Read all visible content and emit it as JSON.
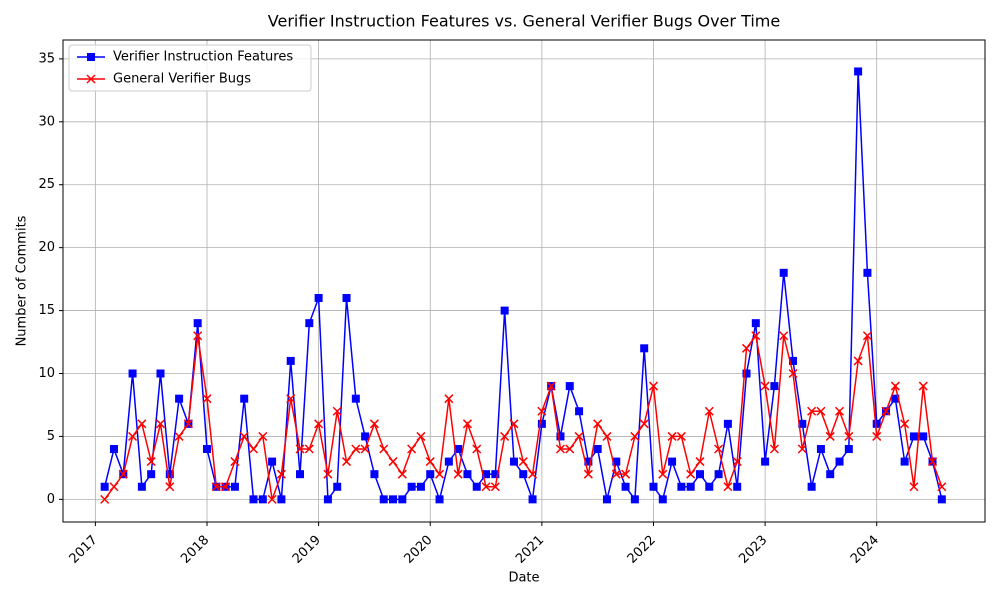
{
  "chart_data": {
    "type": "line",
    "title": "Verifier Instruction Features vs. General Verifier Bugs Over Time",
    "xlabel": "Date",
    "ylabel": "Number of Commits",
    "x": [
      "2017-02",
      "2017-03",
      "2017-04",
      "2017-05",
      "2017-06",
      "2017-07",
      "2017-08",
      "2017-09",
      "2017-10",
      "2017-11",
      "2017-12",
      "2018-01",
      "2018-02",
      "2018-03",
      "2018-04",
      "2018-05",
      "2018-06",
      "2018-07",
      "2018-08",
      "2018-09",
      "2018-10",
      "2018-11",
      "2018-12",
      "2019-01",
      "2019-02",
      "2019-03",
      "2019-04",
      "2019-05",
      "2019-06",
      "2019-07",
      "2019-08",
      "2019-09",
      "2019-10",
      "2019-11",
      "2019-12",
      "2020-01",
      "2020-02",
      "2020-03",
      "2020-04",
      "2020-05",
      "2020-06",
      "2020-07",
      "2020-08",
      "2020-09",
      "2020-10",
      "2020-11",
      "2020-12",
      "2021-01",
      "2021-02",
      "2021-03",
      "2021-04",
      "2021-05",
      "2021-06",
      "2021-07",
      "2021-08",
      "2021-09",
      "2021-10",
      "2021-11",
      "2021-12",
      "2022-01",
      "2022-02",
      "2022-03",
      "2022-04",
      "2022-05",
      "2022-06",
      "2022-07",
      "2022-08",
      "2022-09",
      "2022-10",
      "2022-11",
      "2022-12",
      "2023-01",
      "2023-02",
      "2023-03",
      "2023-04",
      "2023-05",
      "2023-06",
      "2023-07",
      "2023-08",
      "2023-09",
      "2023-10",
      "2023-11",
      "2023-12",
      "2024-01",
      "2024-02",
      "2024-03",
      "2024-04",
      "2024-05",
      "2024-06",
      "2024-07",
      "2024-08"
    ],
    "series": [
      {
        "name": "Verifier Instruction Features",
        "color": "#0000ff",
        "marker": "square",
        "values": [
          1,
          4,
          2,
          10,
          1,
          2,
          10,
          2,
          8,
          6,
          14,
          4,
          1,
          1,
          1,
          8,
          0,
          0,
          3,
          0,
          11,
          2,
          14,
          16,
          0,
          1,
          16,
          8,
          5,
          2,
          0,
          0,
          0,
          1,
          1,
          2,
          0,
          3,
          4,
          2,
          1,
          2,
          2,
          15,
          3,
          2,
          0,
          6,
          9,
          5,
          9,
          7,
          3,
          4,
          0,
          3,
          1,
          0,
          12,
          1,
          0,
          3,
          1,
          1,
          2,
          1,
          2,
          6,
          1,
          10,
          14,
          3,
          9,
          18,
          11,
          6,
          1,
          4,
          2,
          3,
          4,
          34,
          18,
          6,
          7,
          8,
          3,
          5,
          5,
          3,
          0
        ]
      },
      {
        "name": "General Verifier Bugs",
        "color": "#ff0000",
        "marker": "x",
        "values": [
          0,
          1,
          2,
          5,
          6,
          3,
          6,
          1,
          5,
          6,
          13,
          8,
          1,
          1,
          3,
          5,
          4,
          5,
          0,
          2,
          8,
          4,
          4,
          6,
          2,
          7,
          3,
          4,
          4,
          6,
          4,
          3,
          2,
          4,
          5,
          3,
          2,
          8,
          2,
          6,
          4,
          1,
          1,
          5,
          6,
          3,
          2,
          7,
          9,
          4,
          4,
          5,
          2,
          6,
          5,
          2,
          2,
          5,
          6,
          9,
          2,
          5,
          5,
          2,
          3,
          7,
          4,
          1,
          3,
          12,
          13,
          9,
          4,
          13,
          10,
          4,
          7,
          7,
          5,
          7,
          5,
          11,
          13,
          5,
          7,
          9,
          6,
          1,
          9,
          3,
          1
        ]
      }
    ],
    "xlim": [
      2016.71,
      2024.97
    ],
    "xticks": [
      2017,
      2018,
      2019,
      2020,
      2021,
      2022,
      2023,
      2024
    ],
    "ylim": [
      -1.8,
      36.5
    ],
    "yticks": [
      0,
      5,
      10,
      15,
      20,
      25,
      30,
      35
    ],
    "grid": true,
    "legend": "upper left"
  }
}
